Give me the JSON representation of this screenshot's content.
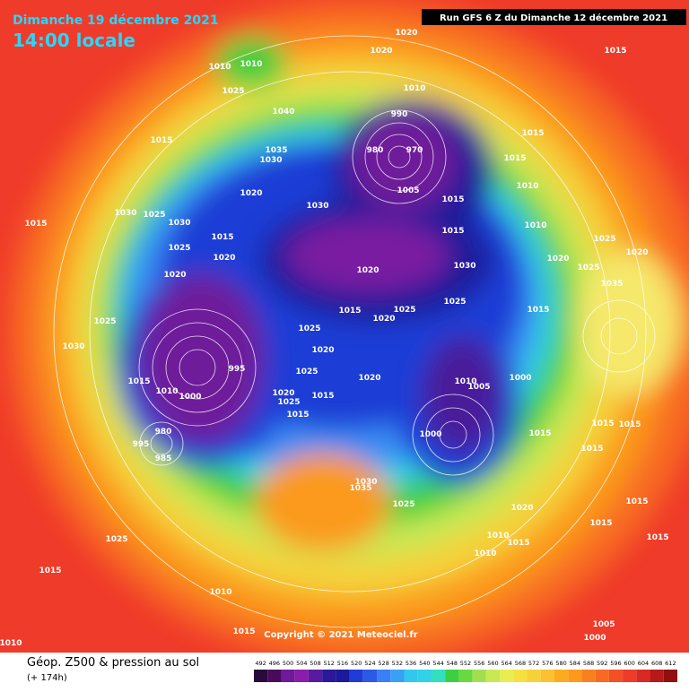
{
  "header": {
    "date": "Dimanche 19 décembre 2021",
    "time": "14:00 locale",
    "run": "Run GFS 6 Z du Dimanche 12 décembre 2021"
  },
  "copyright": "Copyright © 2021 Meteociel.fr",
  "footer": {
    "title": "Géop. Z500 & pression au sol",
    "lead": "(+ 174h)"
  },
  "colorbar": {
    "labels": [
      492,
      496,
      500,
      504,
      508,
      512,
      516,
      520,
      524,
      528,
      532,
      536,
      540,
      544,
      548,
      552,
      556,
      560,
      564,
      568,
      572,
      576,
      580,
      584,
      588,
      592,
      596,
      600,
      604,
      608,
      612
    ]
  },
  "isobar_labels": [
    1010,
    1010,
    1025,
    1020,
    1020,
    1015,
    1010,
    1040,
    990,
    980,
    970,
    1005,
    1015,
    1035,
    1030,
    1015,
    1015,
    1010,
    1015,
    1020,
    1030,
    1030,
    1025,
    1030,
    1015,
    1015,
    1025,
    1015,
    1010,
    1025,
    1020,
    1020,
    1020,
    1030,
    1020,
    1025,
    1020,
    1035,
    1015,
    1020,
    1025,
    1025,
    1015,
    1025,
    1025,
    1030,
    1020,
    1025,
    1020,
    995,
    1015,
    1010,
    1000,
    1010,
    1005,
    1000,
    1020,
    1025,
    1015,
    1015,
    980,
    995,
    985,
    1000,
    1015,
    1015,
    1015,
    1015,
    1030,
    1035,
    1025,
    1020,
    1015,
    1015,
    1010,
    1015,
    1010,
    1015,
    1025,
    1015,
    1010,
    1015,
    1010,
    1005,
    1000
  ]
}
